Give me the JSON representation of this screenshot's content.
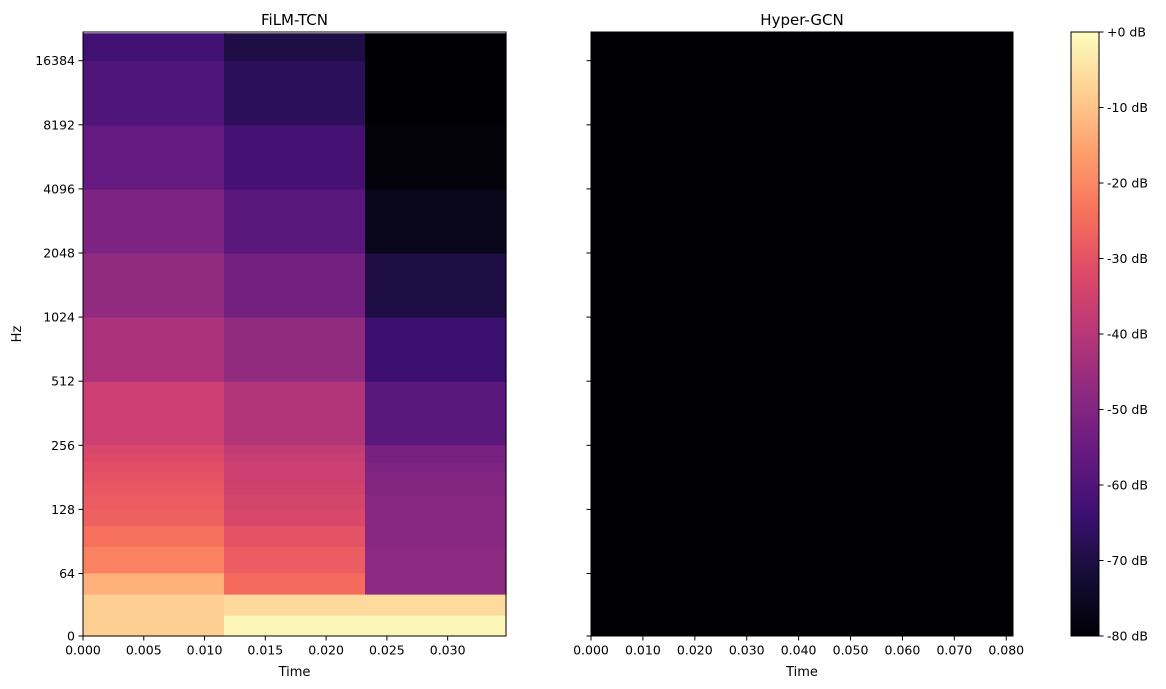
{
  "chart_data": [
    {
      "type": "heatmap",
      "title": "FiLM-TCN",
      "xlabel": "Time",
      "ylabel": "Hz",
      "xlim": [
        0,
        0.0348
      ],
      "x_ticks": [
        0,
        0.005,
        0.01,
        0.015,
        0.02,
        0.025,
        0.03
      ],
      "x_tick_labels": [
        "0.000",
        "0.005",
        "0.010",
        "0.015",
        "0.020",
        "0.025",
        "0.030"
      ],
      "y_scale": "log2-like",
      "y_ticks": [
        0,
        64,
        128,
        256,
        512,
        1024,
        2048,
        4096,
        8192,
        16384
      ],
      "y_tick_labels": [
        "0",
        "64",
        "128",
        "256",
        "512",
        "1024",
        "2048",
        "4096",
        "8192",
        "16384"
      ],
      "time_bins": [
        {
          "start": 0.0,
          "end": 0.0116
        },
        {
          "start": 0.0116,
          "end": 0.0232
        },
        {
          "start": 0.0232,
          "end": 0.0348
        }
      ],
      "frequency_bands_hz": [
        {
          "low": 0,
          "high": 21.5,
          "db": [
            -8,
            -1,
            -1
          ]
        },
        {
          "low": 21.5,
          "high": 43,
          "db": [
            -8,
            -6,
            -6
          ]
        },
        {
          "low": 43,
          "high": 64.5,
          "db": [
            -13,
            -25,
            -48
          ]
        },
        {
          "low": 64.5,
          "high": 86,
          "db": [
            -21,
            -28,
            -48
          ]
        },
        {
          "low": 86,
          "high": 107.5,
          "db": [
            -24,
            -30,
            -49
          ]
        },
        {
          "low": 107.5,
          "high": 129,
          "db": [
            -27,
            -33,
            -49
          ]
        },
        {
          "low": 129,
          "high": 150.5,
          "db": [
            -28,
            -34,
            -49
          ]
        },
        {
          "low": 150.5,
          "high": 172,
          "db": [
            -29,
            -35,
            -50
          ]
        },
        {
          "low": 172,
          "high": 193.5,
          "db": [
            -30,
            -36,
            -50
          ]
        },
        {
          "low": 193.5,
          "high": 215,
          "db": [
            -31,
            -36,
            -51
          ]
        },
        {
          "low": 215,
          "high": 236.5,
          "db": [
            -32,
            -37,
            -52
          ]
        },
        {
          "low": 236.5,
          "high": 258,
          "db": [
            -33,
            -38,
            -52
          ]
        },
        {
          "low": 258,
          "high": 512,
          "db": [
            -36,
            -41,
            -58
          ]
        },
        {
          "low": 512,
          "high": 1024,
          "db": [
            -42,
            -47,
            -64
          ]
        },
        {
          "low": 1024,
          "high": 2048,
          "db": [
            -47,
            -53,
            -70
          ]
        },
        {
          "low": 2048,
          "high": 4096,
          "db": [
            -51,
            -58,
            -76
          ]
        },
        {
          "low": 4096,
          "high": 8192,
          "db": [
            -56,
            -62,
            -79
          ]
        },
        {
          "low": 8192,
          "high": 16384,
          "db": [
            -60,
            -67,
            -80
          ]
        },
        {
          "low": 16384,
          "high": 22050,
          "db": [
            -63,
            -70,
            -80
          ]
        }
      ]
    },
    {
      "type": "heatmap",
      "title": "Hyper-GCN",
      "xlabel": "Time",
      "xlim": [
        0,
        0.0813
      ],
      "x_ticks": [
        0,
        0.01,
        0.02,
        0.03,
        0.04,
        0.05,
        0.06,
        0.07,
        0.08
      ],
      "x_tick_labels": [
        "0.000",
        "0.010",
        "0.020",
        "0.030",
        "0.040",
        "0.050",
        "0.060",
        "0.070",
        "0.080"
      ],
      "shares_y_axis": true,
      "uniform_db": -80
    },
    {
      "type": "colorbar",
      "colormap": "magma",
      "range_db": [
        -80,
        0
      ],
      "ticks": [
        0,
        -10,
        -20,
        -30,
        -40,
        -50,
        -60,
        -70,
        -80
      ],
      "tick_labels": [
        "+0 dB",
        "-10 dB",
        "-20 dB",
        "-30 dB",
        "-40 dB",
        "-50 dB",
        "-60 dB",
        "-70 dB",
        "-80 dB"
      ]
    }
  ],
  "colors": {
    "axis": "#000000",
    "background": "#ffffff"
  }
}
